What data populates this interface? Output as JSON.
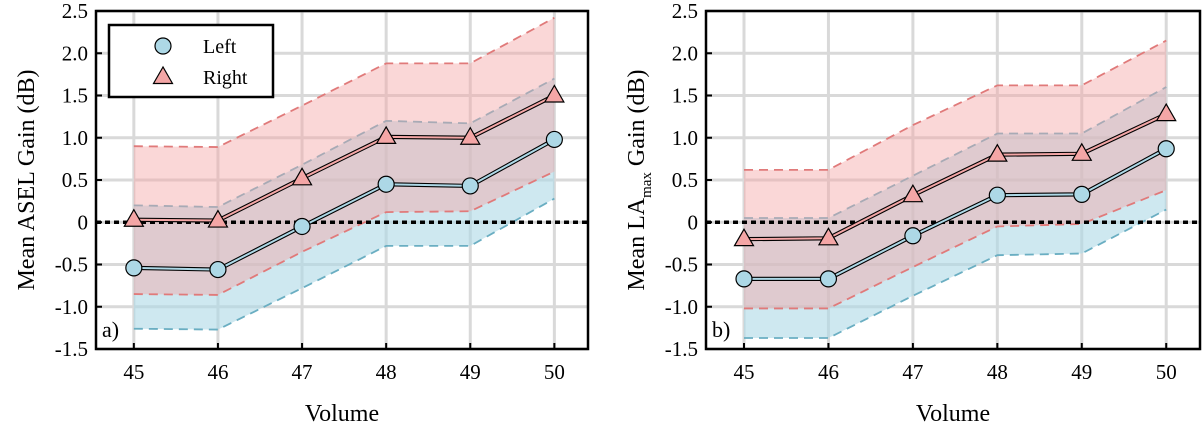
{
  "colors": {
    "left": "#add8e6",
    "left_line": "#6aaec2",
    "right": "#f4a6a6",
    "right_line": "#e07a7a",
    "zero_line": "#000000",
    "grid": "#d9d9d9"
  },
  "legend": {
    "left": "Left",
    "right": "Right",
    "placement": "top-left"
  },
  "chart_data": [
    {
      "type": "line",
      "panel_label": "a)",
      "xlabel": "Volume",
      "ylabel_main": "Mean ASEL Gain (dB)",
      "ylabel_sub": "",
      "ylabel_tail": "",
      "x": [
        45,
        46,
        47,
        48,
        49,
        50
      ],
      "xlim": [
        44.55,
        50.4
      ],
      "ylim": [
        -1.5,
        2.5
      ],
      "yticks": [
        -1.5,
        -1.0,
        -0.5,
        0,
        0.5,
        1.0,
        1.5,
        2.0,
        2.5
      ],
      "ytick_labels": [
        "-1.5",
        "-1.0",
        "-0.5",
        "0",
        "0.5",
        "1.0",
        "1.5",
        "2.0",
        "2.5"
      ],
      "grid": true,
      "reference_line": 0,
      "series": [
        {
          "name": "Left",
          "marker": "circle",
          "values": [
            -0.54,
            -0.56,
            -0.05,
            0.45,
            0.43,
            0.98
          ],
          "lower": [
            -1.26,
            -1.27,
            -0.78,
            -0.28,
            -0.28,
            0.28
          ],
          "upper": [
            0.2,
            0.18,
            0.68,
            1.2,
            1.17,
            1.7
          ]
        },
        {
          "name": "Right",
          "marker": "triangle",
          "values": [
            0.03,
            0.02,
            0.52,
            1.01,
            1.0,
            1.5
          ],
          "lower": [
            -0.85,
            -0.86,
            -0.35,
            0.12,
            0.13,
            0.6
          ],
          "upper": [
            0.9,
            0.89,
            1.38,
            1.88,
            1.88,
            2.42
          ]
        }
      ]
    },
    {
      "type": "line",
      "panel_label": "b)",
      "xlabel": "Volume",
      "ylabel_main": "Mean LA",
      "ylabel_sub": "max",
      "ylabel_tail": " Gain (dB)",
      "x": [
        45,
        46,
        47,
        48,
        49,
        50
      ],
      "xlim": [
        44.55,
        50.4
      ],
      "ylim": [
        -1.5,
        2.5
      ],
      "yticks": [
        -1.5,
        -1.0,
        -0.5,
        0,
        0.5,
        1.0,
        1.5,
        2.0,
        2.5
      ],
      "ytick_labels": [
        "-1.5",
        "-1.0",
        "-0.5",
        "0",
        "0.5",
        "1.0",
        "1.5",
        "2.0",
        "2.5"
      ],
      "grid": true,
      "reference_line": 0,
      "series": [
        {
          "name": "Left",
          "marker": "circle",
          "values": [
            -0.67,
            -0.67,
            -0.16,
            0.32,
            0.33,
            0.87
          ],
          "lower": [
            -1.37,
            -1.37,
            -0.87,
            -0.39,
            -0.37,
            0.15
          ],
          "upper": [
            0.05,
            0.05,
            0.55,
            1.05,
            1.05,
            1.6
          ]
        },
        {
          "name": "Right",
          "marker": "triangle",
          "values": [
            -0.2,
            -0.19,
            0.32,
            0.8,
            0.81,
            1.28
          ],
          "lower": [
            -1.02,
            -1.02,
            -0.53,
            -0.05,
            -0.02,
            0.38
          ],
          "upper": [
            0.62,
            0.62,
            1.15,
            1.62,
            1.62,
            2.15
          ]
        }
      ]
    }
  ]
}
